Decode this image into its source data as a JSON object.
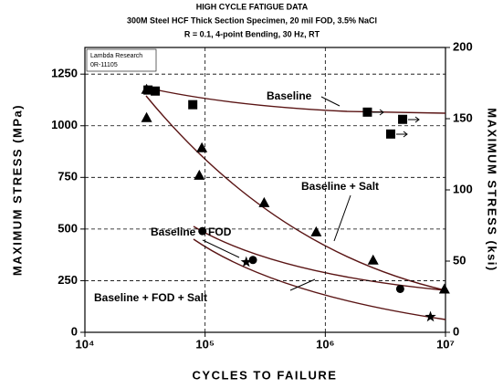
{
  "chart_data": {
    "type": "scatter",
    "title": "HIGH CYCLE FATIGUE DATA",
    "subtitle": [
      "300M Steel HCF Thick Section Specimen, 20 mil FOD, 3.5% NaCl",
      "R = 0.1, 4-point Bending, 30 Hz, RT"
    ],
    "note": [
      "Lambda Research",
      "0R-11105"
    ],
    "xlabel": "CYCLES TO FAILURE",
    "ylabel": "MAXIMUM STRESS (MPa)",
    "y2label": "MAXIMUM STRESS (ksi)",
    "xscale": "log",
    "xlim": [
      10000,
      10000000
    ],
    "xticks": [
      {
        "value": 10000,
        "label": "10⁴"
      },
      {
        "value": 100000,
        "label": "10⁵"
      },
      {
        "value": 1000000,
        "label": "10⁶"
      },
      {
        "value": 10000000,
        "label": "10⁷"
      }
    ],
    "ylim": [
      0,
      1379
    ],
    "yticks": [
      0,
      250,
      500,
      750,
      1000,
      1250
    ],
    "y2lim": [
      0,
      200
    ],
    "y2ticks": [
      0,
      50,
      100,
      150,
      200
    ],
    "grid": true,
    "series": [
      {
        "name": "Baseline",
        "marker": "square",
        "color": "#000000",
        "x": [
          33500,
          38500,
          79000,
          2240000,
          4400000,
          3500000
        ],
        "values": [
          1173,
          1168,
          1102,
          1066,
          1031,
          960
        ]
      },
      {
        "name": "Baseline + Salt",
        "marker": "triangle",
        "color": "#000000",
        "x": [
          32600,
          32600,
          94000,
          89500,
          310000,
          840000,
          2500000,
          9800000
        ],
        "values": [
          1177,
          1040,
          894,
          761,
          628,
          487,
          350,
          210
        ]
      },
      {
        "name": "Baseline + FOD",
        "marker": "circle",
        "color": "#000000",
        "x": [
          95000,
          250000,
          4200000
        ],
        "values": [
          490,
          350,
          210
        ]
      },
      {
        "name": "Baseline + FOD + Salt",
        "marker": "star",
        "color": "#000000",
        "x": [
          220000,
          7500000
        ],
        "values": [
          340,
          75
        ]
      }
    ]
  }
}
